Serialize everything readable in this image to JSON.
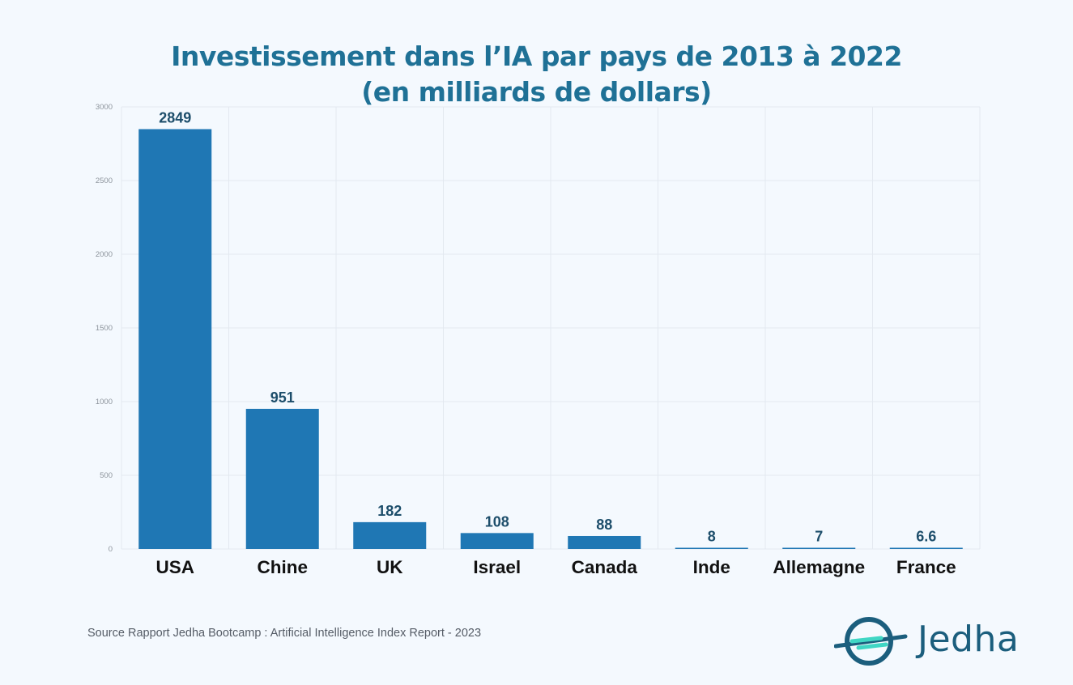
{
  "chart_data": {
    "type": "bar",
    "title_line1": "Investissement dans l’IA par pays de 2013 à 2022",
    "title_line2": "(en milliards de dollars)",
    "categories": [
      "USA",
      "Chine",
      "UK",
      "Israel",
      "Canada",
      "Inde",
      "Allemagne",
      "France"
    ],
    "values": [
      2849,
      951,
      182,
      108,
      88,
      8,
      7,
      6.6
    ],
    "value_labels": [
      "2849",
      "951",
      "182",
      "108",
      "88",
      "8",
      "7",
      "6.6"
    ],
    "ylim": [
      0,
      3000
    ],
    "yticks": [
      0,
      500,
      1000,
      1500,
      2000,
      2500,
      3000
    ],
    "grid": true,
    "bar_color": "#1f77b4",
    "label_color": "#1d4e6b"
  },
  "footer": {
    "source": "Source Rapport Jedha Bootcamp :  Artificial Intelligence Index Report - 2023",
    "brand": "Jedha"
  },
  "colors": {
    "title": "#1f7196",
    "logo": "#1b5e7d",
    "logo_accent": "#3fd6c4"
  },
  "icons": {
    "logo": "jedha-orbit-logo-icon"
  }
}
